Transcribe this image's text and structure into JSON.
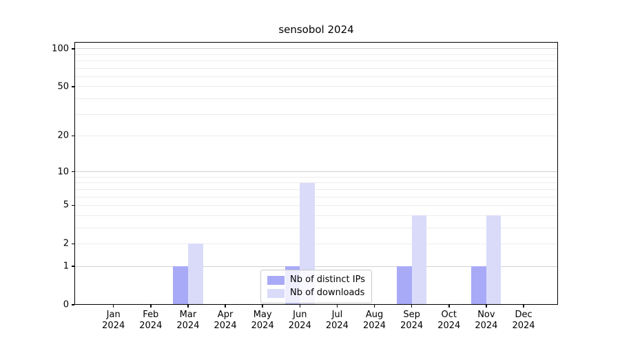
{
  "title": "sensobol 2024",
  "chart_data": {
    "type": "bar",
    "title": "sensobol 2024",
    "categories": [
      "Jan",
      "Feb",
      "Mar",
      "Apr",
      "May",
      "Jun",
      "Jul",
      "Aug",
      "Sep",
      "Oct",
      "Nov",
      "Dec"
    ],
    "category_year": "2024",
    "series": [
      {
        "name": "Nb of distinct IPs",
        "color": "#a8aaf7",
        "values": [
          0,
          0,
          1,
          0,
          0,
          1,
          0,
          0,
          1,
          0,
          1,
          0
        ]
      },
      {
        "name": "Nb of downloads",
        "color": "#d9dbf9",
        "values": [
          0,
          0,
          2,
          0,
          0,
          8,
          0,
          0,
          4,
          0,
          4,
          0
        ]
      }
    ],
    "y_axis": {
      "scale": "log1p",
      "ticks": [
        0,
        1,
        2,
        5,
        10,
        20,
        50,
        100
      ],
      "max": 113,
      "gridlines": [
        1,
        2,
        3,
        4,
        5,
        6,
        7,
        8,
        9,
        10,
        20,
        30,
        40,
        50,
        60,
        70,
        80,
        90,
        100
      ],
      "emphasized_gridlines": [
        1,
        10,
        100
      ]
    },
    "xlabel": "",
    "ylabel": "",
    "grid": true,
    "legend": {
      "position": "lower center",
      "entries": [
        "Nb of distinct IPs",
        "Nb of downloads"
      ]
    },
    "colors": {
      "grid_minor": "#ececec",
      "grid_major": "#d0d0d0",
      "axis": "#000000",
      "background": "#ffffff"
    }
  }
}
